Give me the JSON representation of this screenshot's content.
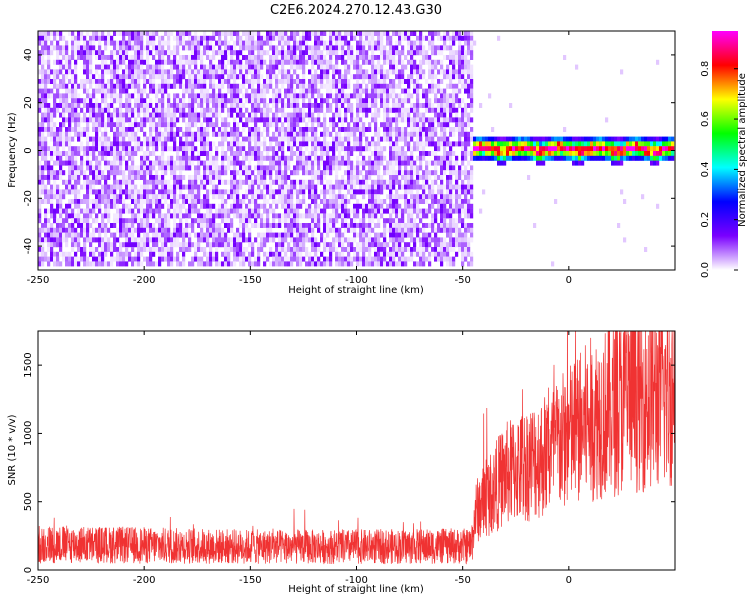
{
  "title": "C2E6.2024.270.12.43.G30",
  "chart_data": [
    {
      "type": "heatmap",
      "xlabel": "Height of straight line (km)",
      "ylabel": "Frequency (Hz)",
      "xlim": [
        -250,
        50
      ],
      "ylim": [
        -50,
        50
      ],
      "xticks": [
        -250,
        -200,
        -150,
        -100,
        -50,
        0
      ],
      "yticks": [
        -40,
        -20,
        0,
        20,
        40
      ],
      "noise_region_x": [
        -250,
        -45
      ],
      "signal_region_x": [
        -45,
        50
      ],
      "signal_frequency_hz": 0.5,
      "colorbar": {
        "label": "Normalized spectral amplitude",
        "range": [
          0,
          0.95
        ],
        "ticks": [
          0,
          0.2,
          0.4,
          0.6,
          0.8
        ],
        "colors": [
          "#ffffff",
          "#7a00ff",
          "#0000ff",
          "#00ffff",
          "#00ff00",
          "#ffff00",
          "#ff0000",
          "#ff00ff"
        ]
      },
      "grid": false
    },
    {
      "type": "line",
      "xlabel": "Height of straight line (km)",
      "ylabel": "SNR (10 * v/v)",
      "xlim": [
        -250,
        50
      ],
      "ylim": [
        0,
        1750
      ],
      "xticks": [
        -250,
        -200,
        -150,
        -100,
        -50,
        0
      ],
      "yticks": [
        0,
        500,
        1000,
        1500
      ],
      "color": "#f03232",
      "trend": [
        {
          "x": -250,
          "y": 190
        },
        {
          "x": -200,
          "y": 180
        },
        {
          "x": -150,
          "y": 170
        },
        {
          "x": -100,
          "y": 170
        },
        {
          "x": -46,
          "y": 175
        },
        {
          "x": -44,
          "y": 420
        },
        {
          "x": -30,
          "y": 700
        },
        {
          "x": -10,
          "y": 850
        },
        {
          "x": 10,
          "y": 1100
        },
        {
          "x": 30,
          "y": 1250
        },
        {
          "x": 50,
          "y": 1300
        }
      ],
      "grid": false
    }
  ]
}
